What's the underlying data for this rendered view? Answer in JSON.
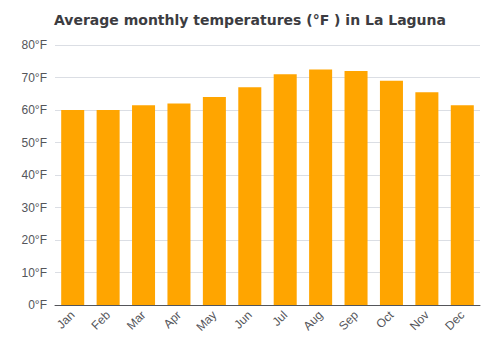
{
  "chart_data": {
    "type": "bar",
    "title": "Average monthly temperatures (°F ) in La Laguna",
    "categories": [
      "Jan",
      "Feb",
      "Mar",
      "Apr",
      "May",
      "Jun",
      "Jul",
      "Aug",
      "Sep",
      "Oct",
      "Nov",
      "Dec"
    ],
    "values": [
      60,
      60,
      61.5,
      62,
      64,
      67,
      71,
      72.5,
      72,
      69,
      65.5,
      61.5
    ],
    "color": "#FFA500",
    "ylim": [
      0,
      80
    ],
    "yticks": [
      {
        "value": 0,
        "label": "0°F"
      },
      {
        "value": 10,
        "label": "10°F"
      },
      {
        "value": 20,
        "label": "20°F"
      },
      {
        "value": 30,
        "label": "30°F"
      },
      {
        "value": 40,
        "label": "40°F"
      },
      {
        "value": 50,
        "label": "50°F"
      },
      {
        "value": 60,
        "label": "60°F"
      },
      {
        "value": 70,
        "label": "70°F"
      },
      {
        "value": 80,
        "label": "80°F"
      }
    ],
    "grid": true
  }
}
